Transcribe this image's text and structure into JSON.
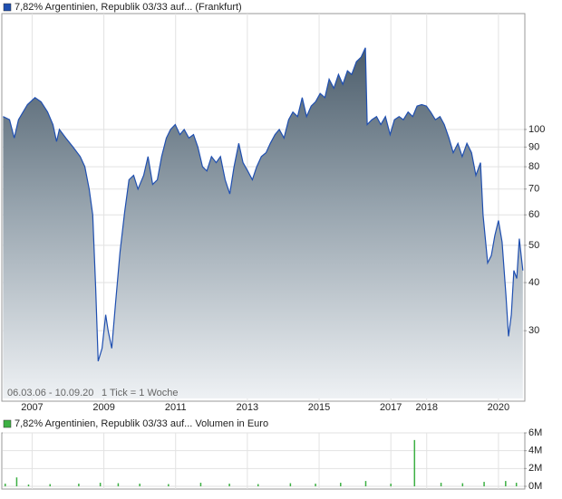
{
  "chart_data": [
    {
      "type": "line",
      "log_y": true,
      "grid": true,
      "xlim": [
        2006.18,
        2020.71
      ],
      "xticks": [
        2007,
        2009,
        2011,
        2013,
        2015,
        2017,
        2018,
        2020
      ],
      "ylim": [
        20,
        200
      ],
      "yticks": [
        30,
        40,
        50,
        60,
        70,
        80,
        90,
        100
      ],
      "annotations": [
        "06.03.06 - 10.09.20",
        "1 Tick = 1 Woche"
      ],
      "series": [
        {
          "name": "7,82% Argentinien, Republik 03/33 auf... (Frankfurt)",
          "color": "#1f4fb0",
          "x": [
            2006.19,
            2006.37,
            2006.5,
            2006.62,
            2006.87,
            2007.08,
            2007.25,
            2007.43,
            2007.58,
            2007.68,
            2007.76,
            2007.94,
            2008.14,
            2008.34,
            2008.47,
            2008.59,
            2008.69,
            2008.77,
            2008.84,
            2008.95,
            2009.05,
            2009.12,
            2009.22,
            2009.32,
            2009.45,
            2009.58,
            2009.7,
            2009.83,
            2009.95,
            2010.11,
            2010.23,
            2010.36,
            2010.49,
            2010.61,
            2010.74,
            2010.86,
            2010.99,
            2011.12,
            2011.24,
            2011.37,
            2011.5,
            2011.62,
            2011.75,
            2011.87,
            2012.0,
            2012.13,
            2012.25,
            2012.38,
            2012.51,
            2012.63,
            2012.76,
            2012.88,
            2013.01,
            2013.14,
            2013.26,
            2013.39,
            2013.52,
            2013.64,
            2013.77,
            2013.89,
            2014.02,
            2014.15,
            2014.27,
            2014.4,
            2014.53,
            2014.65,
            2014.78,
            2014.9,
            2015.03,
            2015.16,
            2015.28,
            2015.41,
            2015.54,
            2015.66,
            2015.79,
            2015.91,
            2016.04,
            2016.17,
            2016.29,
            2016.34,
            2016.47,
            2016.6,
            2016.72,
            2016.85,
            2016.98,
            2017.1,
            2017.23,
            2017.35,
            2017.48,
            2017.61,
            2017.73,
            2017.86,
            2017.99,
            2018.11,
            2018.24,
            2018.37,
            2018.49,
            2018.62,
            2018.74,
            2018.87,
            2018.99,
            2019.12,
            2019.25,
            2019.37,
            2019.5,
            2019.57,
            2019.7,
            2019.8,
            2019.9,
            2020.0,
            2020.1,
            2020.21,
            2020.28,
            2020.36,
            2020.43,
            2020.51,
            2020.58,
            2020.68
          ],
          "values": [
            108,
            106,
            95,
            106,
            116,
            121,
            118,
            111,
            103,
            93,
            100,
            95,
            90,
            85,
            80,
            70,
            60,
            39,
            25,
            27,
            33,
            30,
            27,
            35,
            48,
            61,
            74,
            76,
            70,
            76,
            85,
            72,
            74,
            85,
            95,
            100,
            103,
            97,
            100,
            95,
            97,
            90,
            80,
            78,
            85,
            82,
            85,
            74,
            68,
            80,
            92,
            82,
            78,
            74,
            80,
            85,
            87,
            92,
            97,
            100,
            95,
            106,
            111,
            108,
            121,
            108,
            115,
            118,
            124,
            121,
            135,
            128,
            139,
            131,
            142,
            139,
            150,
            154,
            163,
            103,
            106,
            108,
            103,
            108,
            97,
            106,
            108,
            106,
            111,
            108,
            115,
            116,
            115,
            111,
            106,
            108,
            103,
            95,
            87,
            92,
            85,
            92,
            87,
            76,
            82,
            60,
            45,
            47,
            53,
            58,
            51,
            37,
            29,
            33,
            43,
            41,
            52,
            43
          ]
        }
      ]
    },
    {
      "type": "bar",
      "grid": true,
      "xlim": [
        2006.18,
        2020.71
      ],
      "ylim": [
        0,
        6000000
      ],
      "yticks": [
        {
          "value": 0,
          "label": "0M"
        },
        {
          "value": 2000000,
          "label": "2M"
        },
        {
          "value": 4000000,
          "label": "4M"
        },
        {
          "value": 6000000,
          "label": "6M"
        }
      ],
      "series": [
        {
          "name": "7,82% Argentinien, Republik 03/33 auf... Volumen in Euro",
          "color": "#3cb043",
          "x": [
            2006.25,
            2006.57,
            2006.9,
            2007.5,
            2008.3,
            2008.9,
            2009.4,
            2010.0,
            2010.8,
            2011.7,
            2012.5,
            2013.3,
            2014.2,
            2014.9,
            2015.6,
            2016.3,
            2017.0,
            2017.66,
            2018.4,
            2019.0,
            2019.6,
            2020.2,
            2020.5
          ],
          "values": [
            300000,
            1000000,
            200000,
            250000,
            300000,
            400000,
            350000,
            300000,
            250000,
            400000,
            300000,
            250000,
            350000,
            300000,
            400000,
            600000,
            300000,
            5200000,
            400000,
            350000,
            500000,
            600000,
            400000
          ]
        }
      ]
    }
  ]
}
